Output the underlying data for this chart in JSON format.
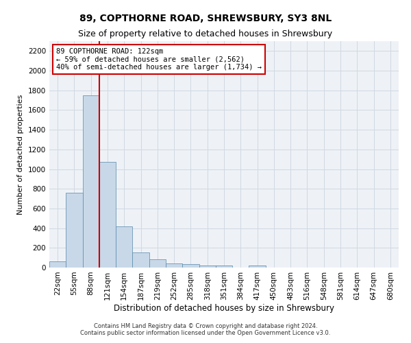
{
  "title": "89, COPTHORNE ROAD, SHREWSBURY, SY3 8NL",
  "subtitle": "Size of property relative to detached houses in Shrewsbury",
  "xlabel": "Distribution of detached houses by size in Shrewsbury",
  "ylabel": "Number of detached properties",
  "footer1": "Contains HM Land Registry data © Crown copyright and database right 2024.",
  "footer2": "Contains public sector information licensed under the Open Government Licence v3.0.",
  "bar_labels": [
    "22sqm",
    "55sqm",
    "88sqm",
    "121sqm",
    "154sqm",
    "187sqm",
    "219sqm",
    "252sqm",
    "285sqm",
    "318sqm",
    "351sqm",
    "384sqm",
    "417sqm",
    "450sqm",
    "483sqm",
    "516sqm",
    "548sqm",
    "581sqm",
    "614sqm",
    "647sqm",
    "680sqm"
  ],
  "bar_values": [
    60,
    760,
    1750,
    1075,
    420,
    155,
    85,
    45,
    35,
    20,
    20,
    0,
    20,
    0,
    0,
    0,
    0,
    0,
    0,
    0,
    0
  ],
  "bar_color": "#c8d8e8",
  "bar_edge_color": "#5588aa",
  "ylim": [
    0,
    2300
  ],
  "yticks": [
    0,
    200,
    400,
    600,
    800,
    1000,
    1200,
    1400,
    1600,
    1800,
    2000,
    2200
  ],
  "annotation_text": "89 COPTHORNE ROAD: 122sqm\n← 59% of detached houses are smaller (2,562)\n40% of semi-detached houses are larger (1,734) →",
  "annotation_box_color": "#cc0000",
  "vline_color": "#cc0000",
  "grid_color": "#d0d8e0",
  "bg_color": "#eef2f7",
  "title_fontsize": 10,
  "subtitle_fontsize": 9,
  "ylabel_fontsize": 8,
  "xlabel_fontsize": 8.5,
  "tick_fontsize": 7.5,
  "footer_fontsize": 6,
  "annotation_fontsize": 7.5
}
